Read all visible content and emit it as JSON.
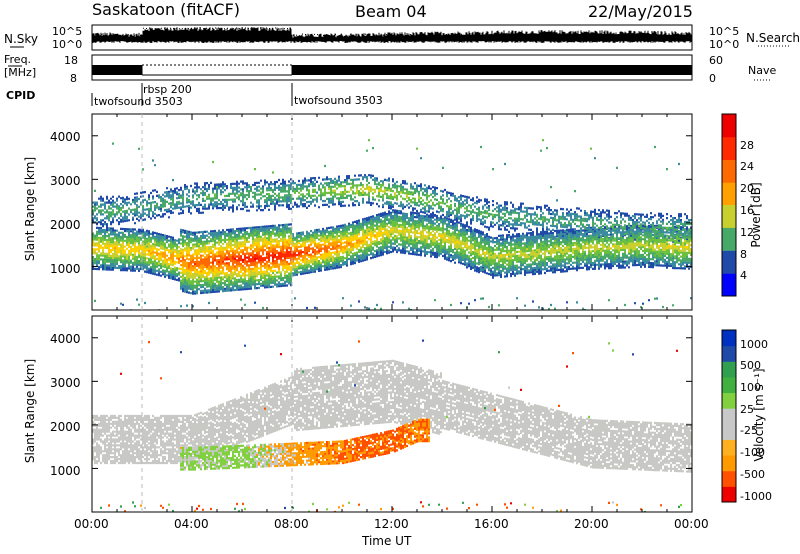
{
  "header": {
    "station": "Saskatoon (fitACF)",
    "beam": "Beam 04",
    "date": "22/May/2015"
  },
  "noise_panel": {
    "left_label": "N.Sky",
    "right_label": "N.Search",
    "left_ticks": [
      "10^5",
      "10^0"
    ],
    "right_ticks": [
      "10^5",
      "10^0"
    ]
  },
  "freq_panel": {
    "left_label_1": "Freq.",
    "left_label_2": "[MHz]",
    "right_label": "Nave",
    "left_ticks": [
      "18",
      "8"
    ],
    "right_ticks": [
      "60",
      "0"
    ]
  },
  "cpid": {
    "label": "CPID",
    "segments": [
      {
        "name": "twofsound 3503",
        "start": 0.0,
        "end": 2.0
      },
      {
        "name": "rbsp 200",
        "start": 2.0,
        "end": 8.0
      },
      {
        "name": "twofsound 3503",
        "start": 8.0,
        "end": 24.0
      }
    ],
    "text_1": "twofsound 3503",
    "text_2": "rbsp 200",
    "text_2b": "3503",
    "text_3": "twofsound 3503"
  },
  "colors": {
    "power_scale": [
      "#0000ff",
      "#1f4aa8",
      "#3a8aa0",
      "#48a868",
      "#6cc040",
      "#c8d030",
      "#ffd000",
      "#ffa000",
      "#ff6a00",
      "#ff2a00",
      "#ee0000"
    ],
    "velocity_scale": [
      "#ff0000",
      "#ff5000",
      "#ff9000",
      "#ffb020",
      "#c8c8c8",
      "#c8c8c8",
      "#80d040",
      "#40a840",
      "#209060",
      "#2060a0",
      "#0030c0"
    ],
    "ground_scatter": "#c0c0c0"
  },
  "chart_data": [
    {
      "type": "heatmap",
      "title": "Power",
      "xlabel": "",
      "ylabel": "Slant Range [km]",
      "xlim": [
        0,
        24
      ],
      "ylim": [
        0,
        4500
      ],
      "x_ticks": [],
      "y_ticks": [
        "1000",
        "2000",
        "3000",
        "4000"
      ],
      "colorbar": {
        "label": "Power [dB]",
        "ticks": [
          "4",
          "8",
          "12",
          "16",
          "20",
          "24",
          "28"
        ],
        "range": [
          0,
          32
        ]
      },
      "bands": [
        {
          "label": "main echo band",
          "x": [
            0,
            2,
            4,
            6,
            8,
            10,
            12,
            14,
            16,
            18,
            20,
            22,
            24
          ],
          "center_km": [
            1450,
            1400,
            1100,
            1200,
            1300,
            1500,
            1850,
            1700,
            1250,
            1350,
            1450,
            1500,
            1450
          ],
          "peak_db": [
            20,
            20,
            26,
            30,
            30,
            24,
            18,
            18,
            16,
            16,
            16,
            16,
            18
          ]
        },
        {
          "label": "upper scatter",
          "x": [
            1,
            4,
            8,
            11,
            13,
            16,
            20,
            23
          ],
          "center_km": [
            2300,
            2600,
            2700,
            2800,
            2600,
            2200,
            2000,
            1900
          ],
          "peak_db": [
            10,
            10,
            12,
            18,
            14,
            10,
            10,
            10
          ]
        }
      ]
    },
    {
      "type": "heatmap",
      "title": "Velocity",
      "xlabel": "Time UT",
      "ylabel": "Slant Range [km]",
      "xlim": [
        0,
        24
      ],
      "ylim": [
        0,
        4500
      ],
      "x_ticks": [
        "00:00",
        "04:00",
        "08:00",
        "12:00",
        "16:00",
        "20:00",
        "00:00"
      ],
      "y_ticks": [
        "1000",
        "2000",
        "3000",
        "4000"
      ],
      "colorbar": {
        "label": "Velocity [m s⁻¹]",
        "ticks": [
          "1000",
          "500",
          "100",
          "25",
          "-25",
          "-100",
          "-500",
          "-1000"
        ],
        "range": [
          -1200,
          1200
        ]
      },
      "bands": [
        {
          "label": "ionospheric scatter",
          "x": [
            4,
            6,
            8,
            10,
            12,
            13
          ],
          "center_km": [
            1250,
            1300,
            1350,
            1400,
            1650,
            1900
          ],
          "velocity": [
            80,
            120,
            -150,
            -300,
            -350,
            -300
          ]
        },
        {
          "label": "ground scatter",
          "x": [
            0,
            4,
            8,
            12,
            16,
            20,
            24
          ],
          "center_km": [
            1700,
            1700,
            2600,
            2800,
            2200,
            1600,
            1500
          ],
          "velocity": [
            0,
            0,
            0,
            0,
            0,
            0,
            0
          ]
        }
      ]
    }
  ]
}
